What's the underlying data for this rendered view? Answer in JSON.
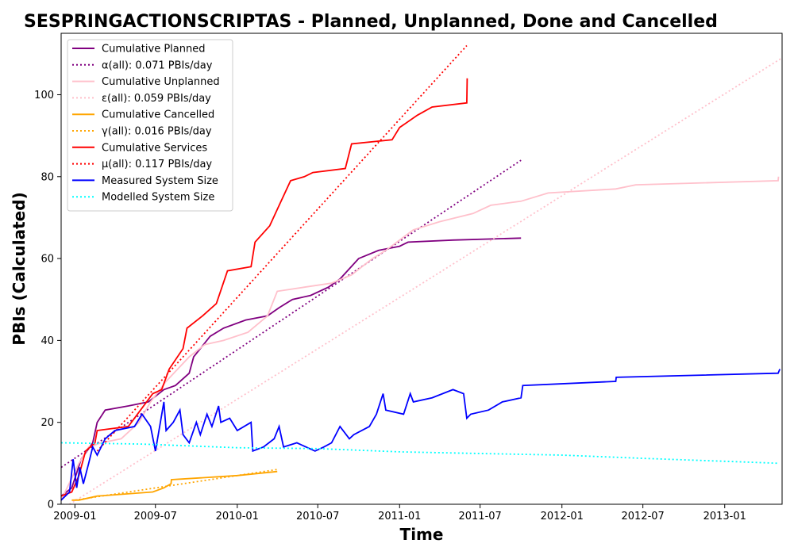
{
  "chart_data": {
    "type": "line",
    "title": "SESPRINGACTIONSCRIPTAS - Planned, Unplanned, Done  and Cancelled",
    "xlabel": "Time",
    "ylabel": "PBIs (Calculated)",
    "xlim": [
      "2008-12-01",
      "2013-05-10"
    ],
    "ylim": [
      0,
      115
    ],
    "x_ticks": [
      "2009-01",
      "2009-07",
      "2010-01",
      "2010-07",
      "2011-01",
      "2011-07",
      "2012-01",
      "2012-07",
      "2013-01"
    ],
    "y_ticks": [
      0,
      20,
      40,
      60,
      80,
      100
    ],
    "grid": false,
    "legend_position": "top-left",
    "series": [
      {
        "name": "Cumulative Planned",
        "color": "#800080",
        "dash": "solid",
        "points": [
          [
            "2008-12-01",
            2
          ],
          [
            "2008-12-25",
            4
          ],
          [
            "2009-01-15",
            11
          ],
          [
            "2009-02-10",
            15
          ],
          [
            "2009-02-20",
            20
          ],
          [
            "2009-03-10",
            23
          ],
          [
            "2009-05-01",
            24
          ],
          [
            "2009-06-15",
            25
          ],
          [
            "2009-07-20",
            28
          ],
          [
            "2009-08-15",
            29
          ],
          [
            "2009-09-15",
            32
          ],
          [
            "2009-09-25",
            36
          ],
          [
            "2009-10-10",
            38
          ],
          [
            "2009-11-01",
            41
          ],
          [
            "2009-12-01",
            43
          ],
          [
            "2010-01-20",
            45
          ],
          [
            "2010-03-10",
            46
          ],
          [
            "2010-04-05",
            48
          ],
          [
            "2010-05-05",
            50
          ],
          [
            "2010-06-15",
            51
          ],
          [
            "2010-07-25",
            53
          ],
          [
            "2010-08-20",
            55
          ],
          [
            "2010-10-01",
            60
          ],
          [
            "2010-11-15",
            62
          ],
          [
            "2011-01-01",
            63
          ],
          [
            "2011-01-20",
            64
          ],
          [
            "2011-05-01",
            64.5
          ],
          [
            "2011-10-01",
            65
          ]
        ]
      },
      {
        "name": "α(all): 0.071 PBIs/day",
        "color": "#800080",
        "dash": "dotted",
        "points": [
          [
            "2008-12-01",
            9
          ],
          [
            "2011-10-01",
            84
          ]
        ]
      },
      {
        "name": "Cumulative Unplanned",
        "color": "#FFC0CB",
        "dash": "solid",
        "points": [
          [
            "2008-12-01",
            1
          ],
          [
            "2009-01-10",
            10
          ],
          [
            "2009-02-01",
            14
          ],
          [
            "2009-03-01",
            15
          ],
          [
            "2009-04-15",
            16
          ],
          [
            "2009-05-25",
            20
          ],
          [
            "2009-06-20",
            25
          ],
          [
            "2009-07-25",
            30
          ],
          [
            "2009-08-20",
            33
          ],
          [
            "2009-09-15",
            36
          ],
          [
            "2009-10-20",
            39
          ],
          [
            "2009-12-01",
            40
          ],
          [
            "2010-01-25",
            42
          ],
          [
            "2010-03-10",
            46
          ],
          [
            "2010-04-01",
            52
          ],
          [
            "2010-06-01",
            53
          ],
          [
            "2010-08-01",
            54
          ],
          [
            "2010-09-15",
            56
          ],
          [
            "2010-11-01",
            60
          ],
          [
            "2010-12-01",
            62
          ],
          [
            "2011-02-01",
            67
          ],
          [
            "2011-04-01",
            69
          ],
          [
            "2011-06-15",
            71
          ],
          [
            "2011-07-25",
            73
          ],
          [
            "2011-10-01",
            74
          ],
          [
            "2011-12-01",
            76
          ],
          [
            "2012-05-01",
            77
          ],
          [
            "2012-06-15",
            78
          ],
          [
            "2013-05-01",
            79
          ],
          [
            "2013-05-02",
            80
          ]
        ]
      },
      {
        "name": "ε(all): 0.059 PBIs/day",
        "color": "#FFC0CB",
        "dash": "dotted",
        "points": [
          [
            "2008-12-20",
            0
          ],
          [
            "2013-05-10",
            109
          ]
        ]
      },
      {
        "name": "Cumulative Cancelled",
        "color": "#FFA500",
        "dash": "solid",
        "points": [
          [
            "2008-12-25",
            1
          ],
          [
            "2009-01-10",
            1
          ],
          [
            "2009-02-20",
            2
          ],
          [
            "2009-06-25",
            3
          ],
          [
            "2009-07-20",
            4
          ],
          [
            "2009-08-05",
            5
          ],
          [
            "2009-08-06",
            6
          ],
          [
            "2010-01-01",
            7
          ],
          [
            "2010-04-01",
            8
          ]
        ]
      },
      {
        "name": "γ(all): 0.016 PBIs/day",
        "color": "#FFA500",
        "dash": "dotted",
        "points": [
          [
            "2009-01-01",
            1
          ],
          [
            "2010-04-01",
            8.5
          ]
        ]
      },
      {
        "name": "Cumulative Services",
        "color": "#FF0000",
        "dash": "solid",
        "points": [
          [
            "2008-12-01",
            2
          ],
          [
            "2008-12-25",
            3
          ],
          [
            "2009-01-10",
            7
          ],
          [
            "2009-01-25",
            13
          ],
          [
            "2009-02-15",
            15
          ],
          [
            "2009-02-20",
            18
          ],
          [
            "2009-05-01",
            19
          ],
          [
            "2009-06-25",
            27
          ],
          [
            "2009-07-15",
            28
          ],
          [
            "2009-08-01",
            33
          ],
          [
            "2009-09-01",
            38
          ],
          [
            "2009-09-10",
            43
          ],
          [
            "2009-10-15",
            46
          ],
          [
            "2009-11-15",
            49
          ],
          [
            "2009-12-10",
            57
          ],
          [
            "2010-02-01",
            58
          ],
          [
            "2010-02-10",
            64
          ],
          [
            "2010-03-15",
            68
          ],
          [
            "2010-04-01",
            72
          ],
          [
            "2010-05-01",
            79
          ],
          [
            "2010-06-01",
            80
          ],
          [
            "2010-06-20",
            81
          ],
          [
            "2010-09-01",
            82
          ],
          [
            "2010-09-15",
            88
          ],
          [
            "2010-12-15",
            89
          ],
          [
            "2011-01-01",
            92
          ],
          [
            "2011-02-10",
            95
          ],
          [
            "2011-03-15",
            97
          ],
          [
            "2011-06-01",
            98
          ],
          [
            "2011-06-02",
            104
          ]
        ]
      },
      {
        "name": "μ(all): 0.117 PBIs/day",
        "color": "#FF0000",
        "dash": "dotted",
        "points": [
          [
            "2009-02-20",
            13
          ],
          [
            "2011-06-01",
            112
          ]
        ]
      },
      {
        "name": "Measured System Size",
        "color": "#0000FF",
        "dash": "solid",
        "points": [
          [
            "2008-12-01",
            1
          ],
          [
            "2008-12-20",
            3
          ],
          [
            "2008-12-28",
            11
          ],
          [
            "2009-01-05",
            4
          ],
          [
            "2009-01-12",
            9
          ],
          [
            "2009-01-20",
            5
          ],
          [
            "2009-02-01",
            10
          ],
          [
            "2009-02-10",
            14
          ],
          [
            "2009-02-20",
            12
          ],
          [
            "2009-03-10",
            16
          ],
          [
            "2009-04-01",
            18
          ],
          [
            "2009-05-15",
            19
          ],
          [
            "2009-06-01",
            22
          ],
          [
            "2009-06-20",
            19
          ],
          [
            "2009-07-01",
            13
          ],
          [
            "2009-07-20",
            25
          ],
          [
            "2009-07-25",
            18
          ],
          [
            "2009-08-10",
            20
          ],
          [
            "2009-08-25",
            23
          ],
          [
            "2009-09-01",
            17
          ],
          [
            "2009-09-15",
            15
          ],
          [
            "2009-10-01",
            20
          ],
          [
            "2009-10-10",
            17
          ],
          [
            "2009-10-25",
            22
          ],
          [
            "2009-11-05",
            19
          ],
          [
            "2009-11-20",
            24
          ],
          [
            "2009-11-25",
            20
          ],
          [
            "2009-12-15",
            21
          ],
          [
            "2010-01-01",
            18
          ],
          [
            "2010-02-01",
            20
          ],
          [
            "2010-02-05",
            13
          ],
          [
            "2010-03-01",
            14
          ],
          [
            "2010-03-25",
            16
          ],
          [
            "2010-04-05",
            19
          ],
          [
            "2010-04-15",
            14
          ],
          [
            "2010-05-15",
            15
          ],
          [
            "2010-06-25",
            13
          ],
          [
            "2010-07-15",
            14
          ],
          [
            "2010-08-01",
            15
          ],
          [
            "2010-08-20",
            19
          ],
          [
            "2010-09-10",
            16
          ],
          [
            "2010-09-20",
            17
          ],
          [
            "2010-10-25",
            19
          ],
          [
            "2010-11-10",
            22
          ],
          [
            "2010-11-25",
            27
          ],
          [
            "2010-12-01",
            23
          ],
          [
            "2011-01-10",
            22
          ],
          [
            "2011-01-25",
            27
          ],
          [
            "2011-02-01",
            25
          ],
          [
            "2011-03-15",
            26
          ],
          [
            "2011-05-01",
            28
          ],
          [
            "2011-05-25",
            27
          ],
          [
            "2011-06-01",
            21
          ],
          [
            "2011-06-10",
            22
          ],
          [
            "2011-07-20",
            23
          ],
          [
            "2011-08-20",
            25
          ],
          [
            "2011-10-01",
            26
          ],
          [
            "2011-10-05",
            29
          ],
          [
            "2012-05-01",
            30
          ],
          [
            "2012-05-02",
            31
          ],
          [
            "2013-05-01",
            32
          ],
          [
            "2013-05-05",
            33
          ]
        ]
      },
      {
        "name": "Modelled System Size",
        "color": "#00FFFF",
        "dash": "dotted",
        "points": [
          [
            "2008-12-01",
            15
          ],
          [
            "2009-06-01",
            14.7
          ],
          [
            "2010-01-01",
            13.8
          ],
          [
            "2010-07-01",
            13.6
          ],
          [
            "2011-01-01",
            12.8
          ],
          [
            "2011-07-01",
            12.4
          ],
          [
            "2012-01-01",
            12
          ],
          [
            "2012-07-01",
            11.2
          ],
          [
            "2013-01-01",
            10.5
          ],
          [
            "2013-05-01",
            10
          ]
        ]
      }
    ]
  }
}
